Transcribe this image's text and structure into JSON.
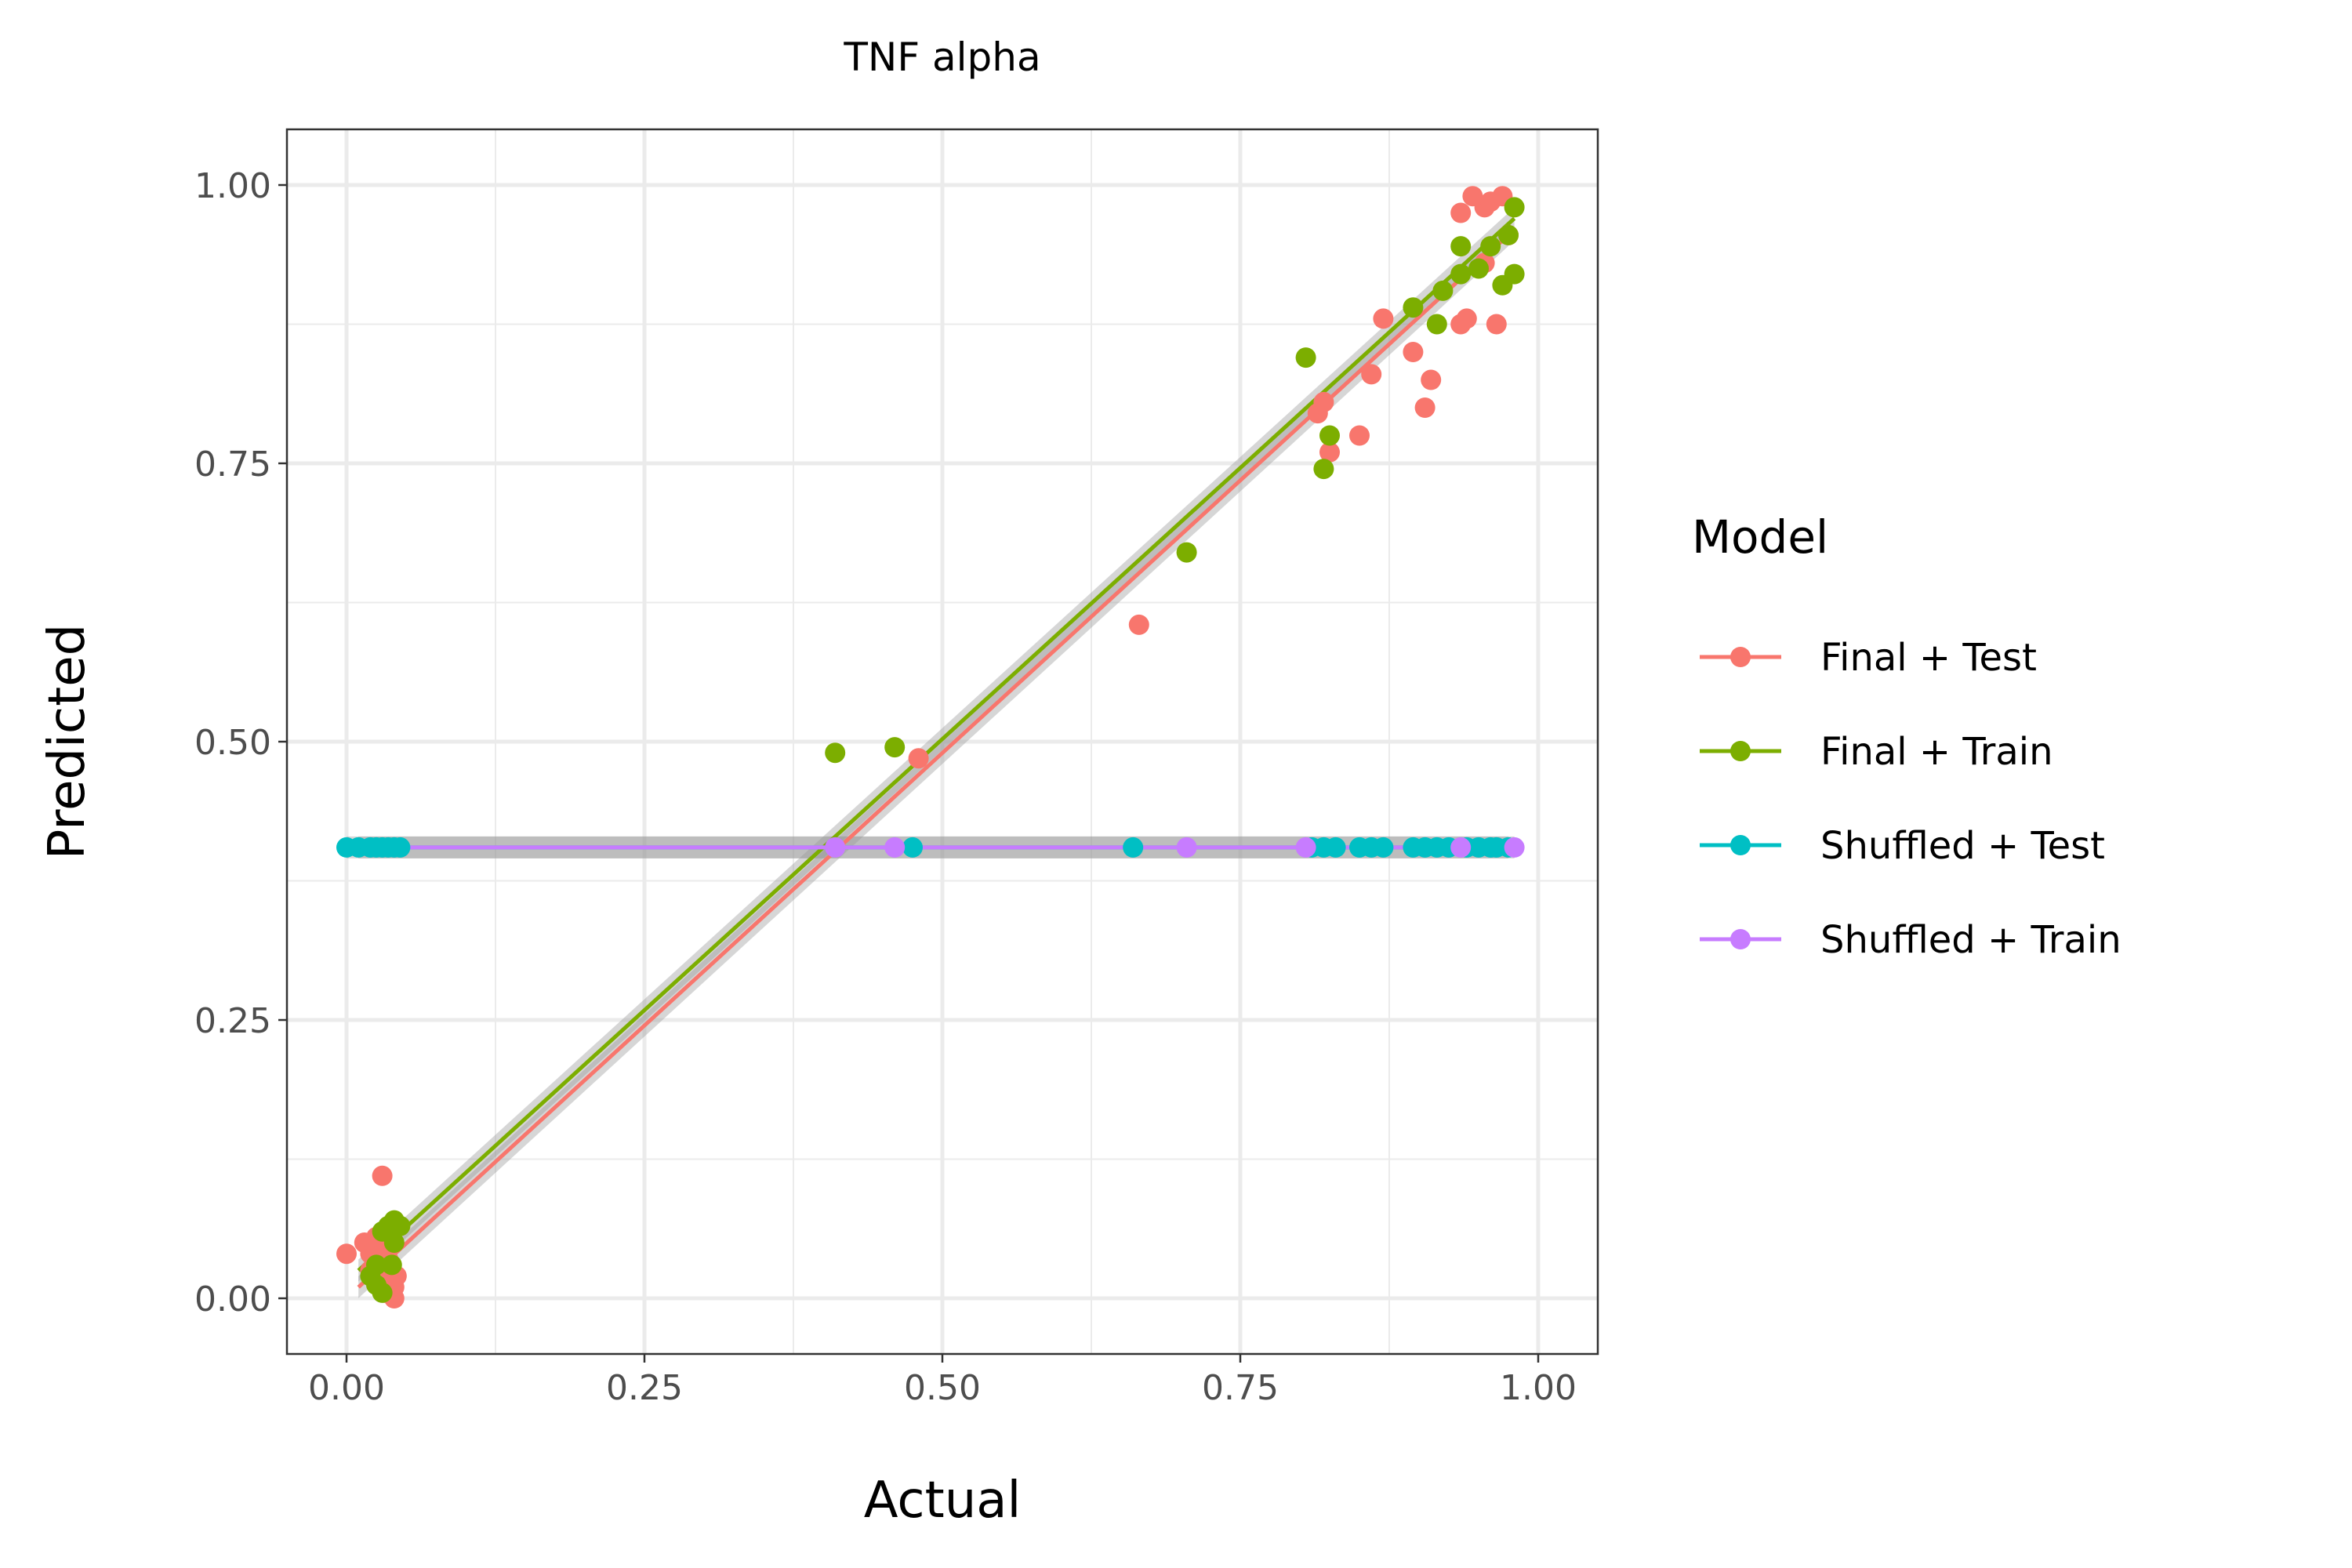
{
  "chart_data": {
    "type": "scatter",
    "title": "TNF alpha",
    "xlabel": "Actual",
    "ylabel": "Predicted",
    "xlim": [
      -0.05,
      1.05
    ],
    "ylim": [
      -0.05,
      1.05
    ],
    "x_ticks": [
      "0.00",
      "0.25",
      "0.50",
      "0.75",
      "1.00"
    ],
    "y_ticks": [
      "0.00",
      "0.25",
      "0.50",
      "0.75",
      "1.00"
    ],
    "tick_values": [
      0,
      0.25,
      0.5,
      0.75,
      1.0
    ],
    "minor_values": [
      0.125,
      0.375,
      0.625,
      0.875
    ],
    "grid": true,
    "legend": {
      "title": "Model",
      "position": "right"
    },
    "series": [
      {
        "name": "Final + Test",
        "color": "#F8766D",
        "fit": [
          [
            0.01,
            0.01
          ],
          [
            0.975,
            0.955
          ]
        ],
        "points": [
          [
            0.0,
            0.04
          ],
          [
            0.015,
            0.05
          ],
          [
            0.02,
            0.04
          ],
          [
            0.025,
            0.055
          ],
          [
            0.03,
            0.045
          ],
          [
            0.03,
            0.11
          ],
          [
            0.035,
            0.035
          ],
          [
            0.035,
            0.02
          ],
          [
            0.04,
            0.01
          ],
          [
            0.04,
            0.0
          ],
          [
            0.02,
            0.025
          ],
          [
            0.028,
            0.03
          ],
          [
            0.038,
            0.05
          ],
          [
            0.042,
            0.02
          ],
          [
            0.032,
            0.005
          ],
          [
            0.48,
            0.485
          ],
          [
            0.665,
            0.605
          ],
          [
            0.815,
            0.795
          ],
          [
            0.82,
            0.805
          ],
          [
            0.825,
            0.76
          ],
          [
            0.85,
            0.775
          ],
          [
            0.86,
            0.83
          ],
          [
            0.87,
            0.88
          ],
          [
            0.895,
            0.85
          ],
          [
            0.905,
            0.8
          ],
          [
            0.91,
            0.825
          ],
          [
            0.935,
            0.975
          ],
          [
            0.935,
            0.875
          ],
          [
            0.94,
            0.88
          ],
          [
            0.945,
            0.99
          ],
          [
            0.955,
            0.98
          ],
          [
            0.96,
            0.985
          ],
          [
            0.965,
            0.875
          ],
          [
            0.97,
            0.99
          ],
          [
            0.975,
            0.955
          ],
          [
            0.955,
            0.93
          ]
        ]
      },
      {
        "name": "Final + Train",
        "color": "#7CAE00",
        "fit": [
          [
            0.01,
            0.025
          ],
          [
            0.98,
            0.97
          ]
        ],
        "points": [
          [
            0.02,
            0.02
          ],
          [
            0.025,
            0.03
          ],
          [
            0.03,
            0.005
          ],
          [
            0.03,
            0.06
          ],
          [
            0.035,
            0.065
          ],
          [
            0.04,
            0.07
          ],
          [
            0.04,
            0.05
          ],
          [
            0.045,
            0.065
          ],
          [
            0.025,
            0.012
          ],
          [
            0.038,
            0.03
          ],
          [
            0.41,
            0.49
          ],
          [
            0.46,
            0.495
          ],
          [
            0.705,
            0.67
          ],
          [
            0.805,
            0.845
          ],
          [
            0.82,
            0.745
          ],
          [
            0.825,
            0.775
          ],
          [
            0.895,
            0.89
          ],
          [
            0.915,
            0.875
          ],
          [
            0.92,
            0.905
          ],
          [
            0.935,
            0.945
          ],
          [
            0.935,
            0.92
          ],
          [
            0.95,
            0.925
          ],
          [
            0.96,
            0.945
          ],
          [
            0.97,
            0.91
          ],
          [
            0.98,
            0.98
          ],
          [
            0.98,
            0.92
          ],
          [
            0.975,
            0.955
          ]
        ]
      },
      {
        "name": "Shuffled + Test",
        "color": "#00BFC4",
        "fit": [
          [
            0.0,
            0.405
          ],
          [
            0.975,
            0.405
          ]
        ],
        "points": [
          [
            0.0,
            0.405
          ],
          [
            0.01,
            0.405
          ],
          [
            0.02,
            0.405
          ],
          [
            0.025,
            0.405
          ],
          [
            0.03,
            0.405
          ],
          [
            0.035,
            0.405
          ],
          [
            0.04,
            0.405
          ],
          [
            0.045,
            0.405
          ],
          [
            0.475,
            0.405
          ],
          [
            0.66,
            0.405
          ],
          [
            0.81,
            0.405
          ],
          [
            0.82,
            0.405
          ],
          [
            0.83,
            0.405
          ],
          [
            0.85,
            0.405
          ],
          [
            0.86,
            0.405
          ],
          [
            0.87,
            0.405
          ],
          [
            0.895,
            0.405
          ],
          [
            0.905,
            0.405
          ],
          [
            0.915,
            0.405
          ],
          [
            0.925,
            0.405
          ],
          [
            0.94,
            0.405
          ],
          [
            0.95,
            0.405
          ],
          [
            0.96,
            0.405
          ],
          [
            0.965,
            0.405
          ],
          [
            0.975,
            0.405
          ]
        ]
      },
      {
        "name": "Shuffled + Train",
        "color": "#C77CFF",
        "fit": [
          [
            0.01,
            0.405
          ],
          [
            0.98,
            0.405
          ]
        ],
        "points": [
          [
            0.41,
            0.405
          ],
          [
            0.46,
            0.405
          ],
          [
            0.705,
            0.405
          ],
          [
            0.805,
            0.405
          ],
          [
            0.935,
            0.405
          ],
          [
            0.98,
            0.405
          ]
        ]
      }
    ]
  }
}
